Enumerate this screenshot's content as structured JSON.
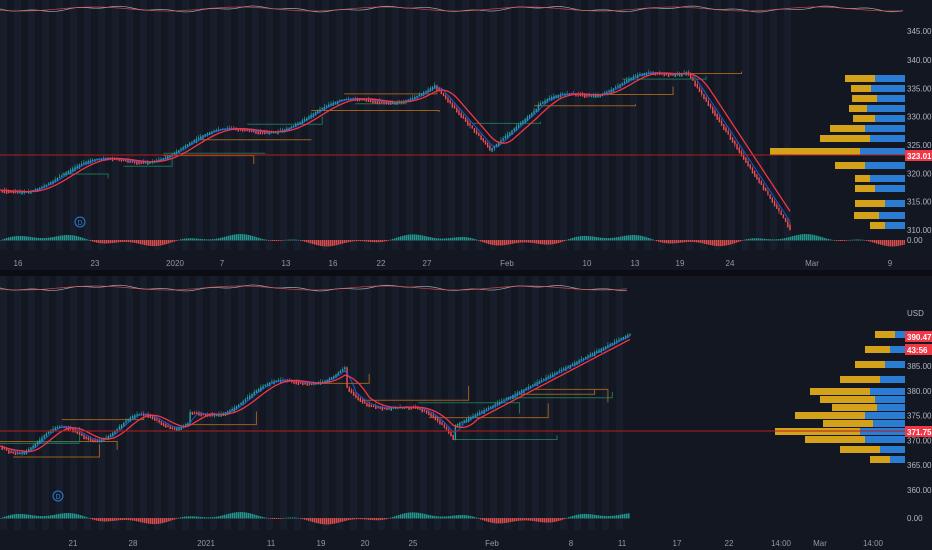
{
  "colors": {
    "background": "#131722",
    "grid": "#1e222d",
    "stripe": "#1c2331",
    "ema": "#f23645",
    "sma": "#8b5cf6",
    "candle_up": "#26a69a",
    "candle_down": "#ef5350",
    "price_line": "#2962ff",
    "vp_gold": "#d4a21a",
    "vp_blue": "#2b7cd3",
    "level_green": "#1f7a5c",
    "level_orange": "#a8661c",
    "poc_line": "#b71c1c"
  },
  "top_chart": {
    "price_axis_labels": [
      "340.00",
      "335.00",
      "330.00",
      "325.00",
      "320.00",
      "315.00",
      "310.00",
      "0.00"
    ],
    "price_axis_values": [
      340,
      335,
      330,
      325,
      320,
      315,
      310
    ],
    "top_label": "345.00",
    "last_price_tag": "323.01",
    "last_price_value": 323.01,
    "time_labels": [
      "16",
      "23",
      "2020",
      "7",
      "13",
      "16",
      "22",
      "27",
      "Feb",
      "10",
      "13",
      "19",
      "24",
      "Mar",
      "9"
    ],
    "event_marker": "D"
  },
  "bottom_chart": {
    "currency_label": "USD",
    "price_axis_labels": [
      "385.00",
      "380.00",
      "375.00",
      "370.00",
      "365.00",
      "360.00",
      "0.00"
    ],
    "price_axis_values": [
      385,
      380,
      375,
      370,
      365,
      360
    ],
    "last_price_tag": "390.47",
    "last_price_value": 390.47,
    "countdown_tag": "43:56",
    "poc_tag": "371.75",
    "poc_value": 371.75,
    "time_labels": [
      "21",
      "28",
      "2021",
      "11",
      "19",
      "20",
      "25",
      "Feb",
      "8",
      "11",
      "17",
      "22",
      "14:00",
      "Mar",
      "14:00"
    ],
    "event_marker": "D"
  }
}
